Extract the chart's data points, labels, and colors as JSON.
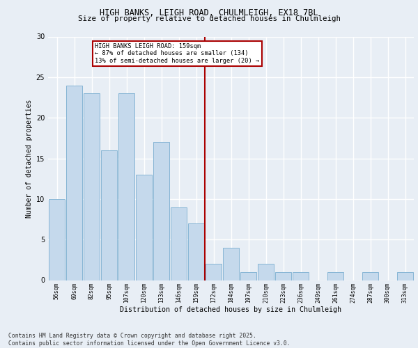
{
  "title1": "HIGH BANKS, LEIGH ROAD, CHULMLEIGH, EX18 7BL",
  "title2": "Size of property relative to detached houses in Chulmleigh",
  "xlabel": "Distribution of detached houses by size in Chulmleigh",
  "ylabel": "Number of detached properties",
  "categories": [
    "56sqm",
    "69sqm",
    "82sqm",
    "95sqm",
    "107sqm",
    "120sqm",
    "133sqm",
    "146sqm",
    "159sqm",
    "172sqm",
    "184sqm",
    "197sqm",
    "210sqm",
    "223sqm",
    "236sqm",
    "249sqm",
    "261sqm",
    "274sqm",
    "287sqm",
    "300sqm",
    "313sqm"
  ],
  "values": [
    10,
    24,
    23,
    16,
    23,
    13,
    17,
    9,
    7,
    2,
    4,
    1,
    2,
    1,
    1,
    0,
    1,
    0,
    1,
    0,
    1
  ],
  "bar_color": "#c5d9ec",
  "bar_edge_color": "#7aaed0",
  "vline_color": "#aa0000",
  "annotation_text": "HIGH BANKS LEIGH ROAD: 159sqm\n← 87% of detached houses are smaller (134)\n13% of semi-detached houses are larger (20) →",
  "annotation_box_color": "#aa0000",
  "ylim": [
    0,
    30
  ],
  "yticks": [
    0,
    5,
    10,
    15,
    20,
    25,
    30
  ],
  "background_color": "#e8eef5",
  "grid_color": "#ffffff",
  "footer": "Contains HM Land Registry data © Crown copyright and database right 2025.\nContains public sector information licensed under the Open Government Licence v3.0."
}
